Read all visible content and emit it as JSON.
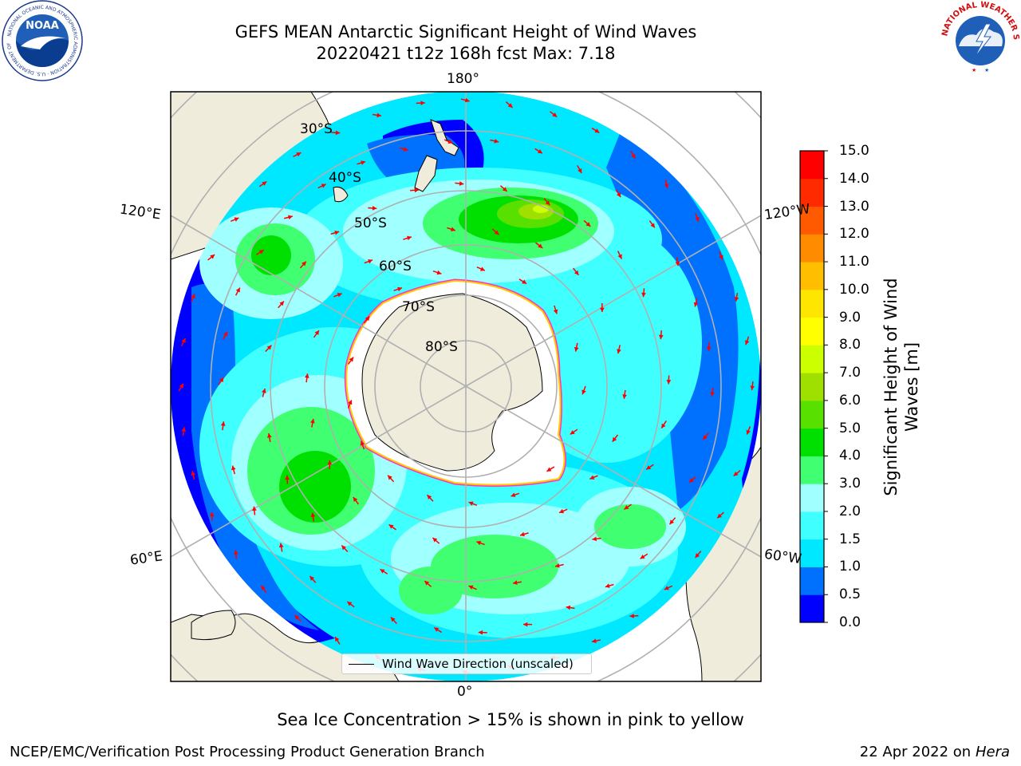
{
  "title": {
    "line1": "GEFS MEAN Antarctic Significant Height of Wind Waves",
    "line2": "20220421 t12z 168h fcst   Max: 7.18"
  },
  "logos": {
    "left": "noaa-logo",
    "left_text": "NOAA",
    "left_ring_text": "NATIONAL OCEANIC AND ATMOSPHERIC ADMINISTRATION · U.S. DEPARTMENT OF COMMERCE",
    "right": "national-weather-service-logo",
    "right_ring_text": "NATIONAL WEATHER SERVICE"
  },
  "map": {
    "projection": "south-polar-stereographic",
    "lon_labels": {
      "top": "180°",
      "bottom": "0°",
      "upper_left": "120°E",
      "upper_right": "120°W",
      "lower_left": "60°E",
      "lower_right": "60°W"
    },
    "lat_labels": [
      "30°S",
      "40°S",
      "50°S",
      "60°S",
      "70°S",
      "80°S"
    ],
    "legend_label": "Wind Wave Direction (unscaled)",
    "colors": {
      "land": "#efecdc",
      "ice_shelf": "#ffffff",
      "arrow": "#ff0000",
      "grid": "#b0b0b0",
      "sea_ice_edge_pink": "#ff33cc",
      "sea_ice_edge_yellow": "#ffcc00"
    }
  },
  "colorbar": {
    "label_line1": "Significant Height of Wind",
    "label_line2": "Waves [m]",
    "ticks": [
      "0.0",
      "0.5",
      "1.0",
      "1.5",
      "2.0",
      "3.0",
      "4.0",
      "5.0",
      "6.0",
      "7.0",
      "8.0",
      "9.0",
      "10.0",
      "11.0",
      "12.0",
      "13.0",
      "14.0",
      "15.0"
    ],
    "colors": [
      "#0000ff",
      "#0070ff",
      "#00e8ff",
      "#40ffff",
      "#a0ffff",
      "#40ff70",
      "#00e000",
      "#58e000",
      "#a0e000",
      "#ccff00",
      "#ffff00",
      "#ffe600",
      "#ffbf00",
      "#ff8c00",
      "#ff5a00",
      "#ff2a00",
      "#ff0000"
    ]
  },
  "notes": {
    "sea_ice": "Sea Ice Concentration > 15% is shown in pink to yellow",
    "footer_left": "NCEP/EMC/Verification Post Processing Product Generation Branch",
    "footer_right_prefix": "22 Apr 2022 on ",
    "footer_right_host": "Hera"
  }
}
